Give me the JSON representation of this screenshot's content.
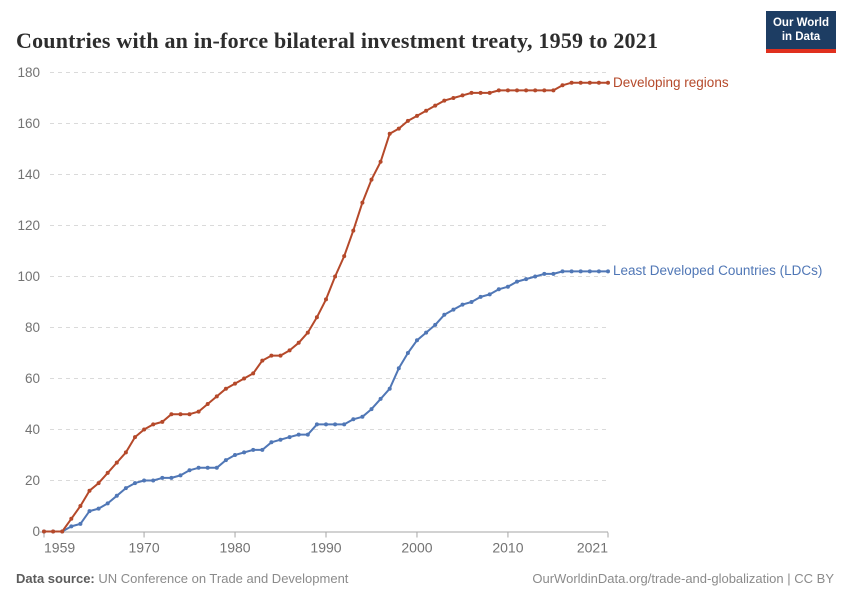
{
  "header": {
    "title": "Countries with an in-force bilateral investment treaty, 1959 to 2021",
    "logo": {
      "line1": "Our World",
      "line2": "in Data",
      "bg_color": "#1d3d63",
      "accent_color": "#e0301e"
    }
  },
  "chart_data": {
    "type": "line",
    "title": "Countries with an in-force bilateral investment treaty, 1959 to 2021",
    "xlabel": "",
    "ylabel": "",
    "xlim": [
      1959,
      2021
    ],
    "ylim": [
      0,
      180
    ],
    "grid": "horizontal-dashed",
    "legend_position": "right-of-line-end",
    "markers": "point-per-year",
    "x": [
      1959,
      1960,
      1961,
      1962,
      1963,
      1964,
      1965,
      1966,
      1967,
      1968,
      1969,
      1970,
      1971,
      1972,
      1973,
      1974,
      1975,
      1976,
      1977,
      1978,
      1979,
      1980,
      1981,
      1982,
      1983,
      1984,
      1985,
      1986,
      1987,
      1988,
      1989,
      1990,
      1991,
      1992,
      1993,
      1994,
      1995,
      1996,
      1997,
      1998,
      1999,
      2000,
      2001,
      2002,
      2003,
      2004,
      2005,
      2006,
      2007,
      2008,
      2009,
      2010,
      2011,
      2012,
      2013,
      2014,
      2015,
      2016,
      2017,
      2018,
      2019,
      2020,
      2021
    ],
    "xticks": [
      1959,
      1970,
      1980,
      1990,
      2000,
      2010,
      2021
    ],
    "yticks": [
      0,
      20,
      40,
      60,
      80,
      100,
      120,
      140,
      160,
      180
    ],
    "series": [
      {
        "name": "Developing regions",
        "color": "#b5492a",
        "values": [
          0,
          0,
          0,
          5,
          10,
          16,
          19,
          23,
          27,
          31,
          37,
          40,
          42,
          43,
          46,
          46,
          46,
          47,
          50,
          53,
          56,
          58,
          60,
          62,
          67,
          69,
          69,
          71,
          74,
          78,
          84,
          91,
          100,
          108,
          118,
          129,
          138,
          145,
          156,
          158,
          161,
          163,
          165,
          167,
          169,
          170,
          171,
          172,
          172,
          172,
          173,
          173,
          173,
          173,
          173,
          173,
          173,
          175,
          176,
          176,
          176,
          176,
          176
        ]
      },
      {
        "name": "Least Developed Countries (LDCs)",
        "color": "#5077b6",
        "values": [
          0,
          0,
          0,
          2,
          3,
          8,
          9,
          11,
          14,
          17,
          19,
          20,
          20,
          21,
          21,
          22,
          24,
          25,
          25,
          25,
          28,
          30,
          31,
          32,
          32,
          35,
          36,
          37,
          38,
          38,
          42,
          42,
          42,
          42,
          44,
          45,
          48,
          52,
          56,
          64,
          70,
          75,
          78,
          81,
          85,
          87,
          89,
          90,
          92,
          93,
          95,
          96,
          98,
          99,
          100,
          101,
          101,
          102,
          102,
          102,
          102,
          102,
          102
        ]
      }
    ],
    "axis_color": "#a6a6a6",
    "grid_color": "#dadada",
    "tick_label_color": "#737373"
  },
  "footer": {
    "datasource_label": "Data source:",
    "datasource": "UN Conference on Trade and Development",
    "link": "OurWorldinData.org/trade-and-globalization",
    "divider": "|",
    "license": "CC BY"
  }
}
